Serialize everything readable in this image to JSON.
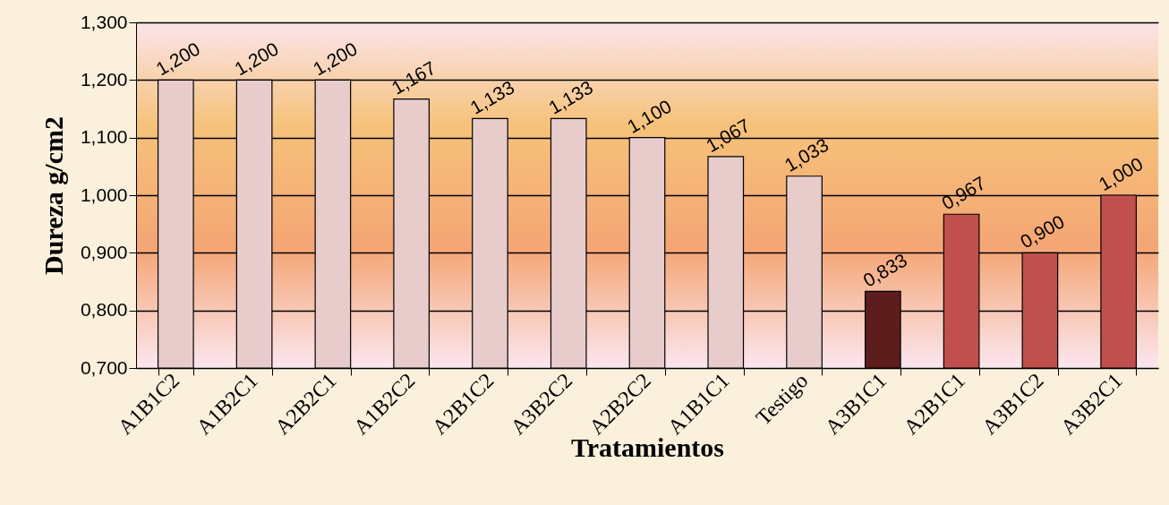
{
  "chart_data": {
    "type": "bar",
    "xlabel": "Tratamientos",
    "ylabel": "Dureza  g/cm2",
    "categories": [
      "A1B1C2",
      "A1B2C1",
      "A2B2C1",
      "A1B2C2",
      "A2B1C2",
      "A3B2C2",
      "A2B2C2",
      "A1B1C1",
      "Testigo",
      "A3B1C1",
      "A2B1C1",
      "A3B1C2",
      "A3B2C1"
    ],
    "values": [
      1.2,
      1.2,
      1.2,
      1.167,
      1.133,
      1.133,
      1.1,
      1.067,
      1.033,
      0.833,
      0.967,
      0.9,
      1.0
    ],
    "value_labels": [
      "1,200",
      "1,200",
      "1,200",
      "1,167",
      "1,133",
      "1,133",
      "1,100",
      "1,067",
      "1,033",
      "0,833",
      "0,967",
      "0,900",
      "1,000"
    ],
    "colors": [
      "#e8cccc",
      "#e8cccc",
      "#e8cccc",
      "#e8cccc",
      "#e8cccc",
      "#e8cccc",
      "#e8cccc",
      "#e8cccc",
      "#e8cccc",
      "#5e1d1d",
      "#c0504d",
      "#c0504d",
      "#c0504d"
    ],
    "ylim": [
      0.7,
      1.3
    ],
    "yticks": [
      {
        "value": 0.7,
        "label": "0,700"
      },
      {
        "value": 0.8,
        "label": "0,800"
      },
      {
        "value": 0.9,
        "label": "0,900"
      },
      {
        "value": 1.0,
        "label": "1,000"
      },
      {
        "value": 1.1,
        "label": "1,100"
      },
      {
        "value": 1.2,
        "label": "1,200"
      },
      {
        "value": 1.3,
        "label": "1,300"
      }
    ],
    "grid": "y"
  }
}
